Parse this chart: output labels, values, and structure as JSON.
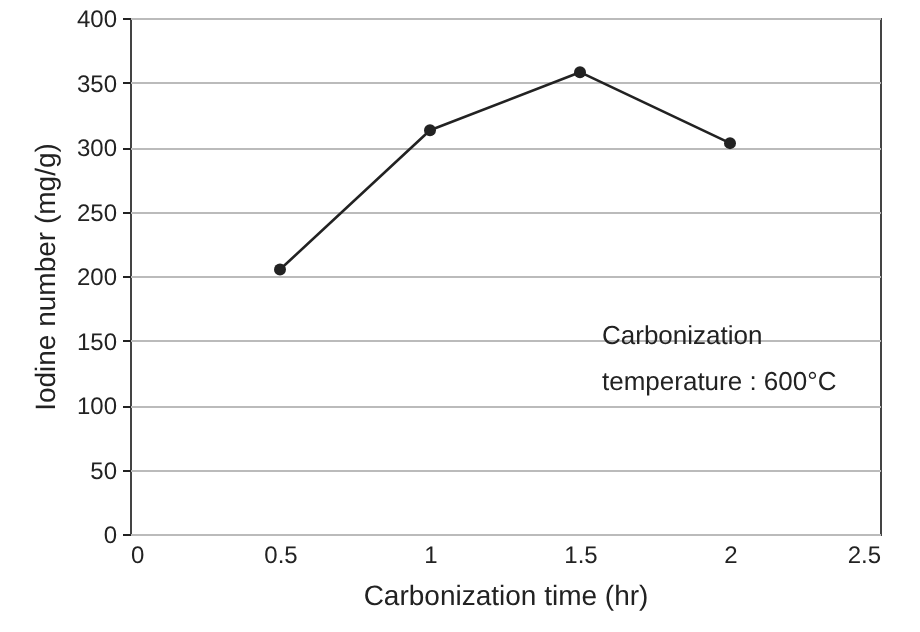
{
  "chart_data": {
    "type": "line",
    "xlabel": "Carbonization time (hr)",
    "ylabel": "Iodine number (mg/g)",
    "x": [
      0.5,
      1,
      1.5,
      2
    ],
    "series": [
      {
        "color": "#222222",
        "values": [
          205,
          313,
          358,
          303
        ]
      }
    ],
    "xlim": [
      0,
      2.5
    ],
    "xticks": [
      0,
      0.5,
      1,
      1.5,
      2,
      2.5
    ],
    "ylim": [
      0,
      400
    ],
    "yticks": [
      0,
      50,
      100,
      150,
      200,
      250,
      300,
      350,
      400
    ],
    "grid": "y",
    "marker": "circle",
    "line_style": "solid",
    "annotations": [
      "Carbonization\ntemperature : 600°C"
    ]
  }
}
